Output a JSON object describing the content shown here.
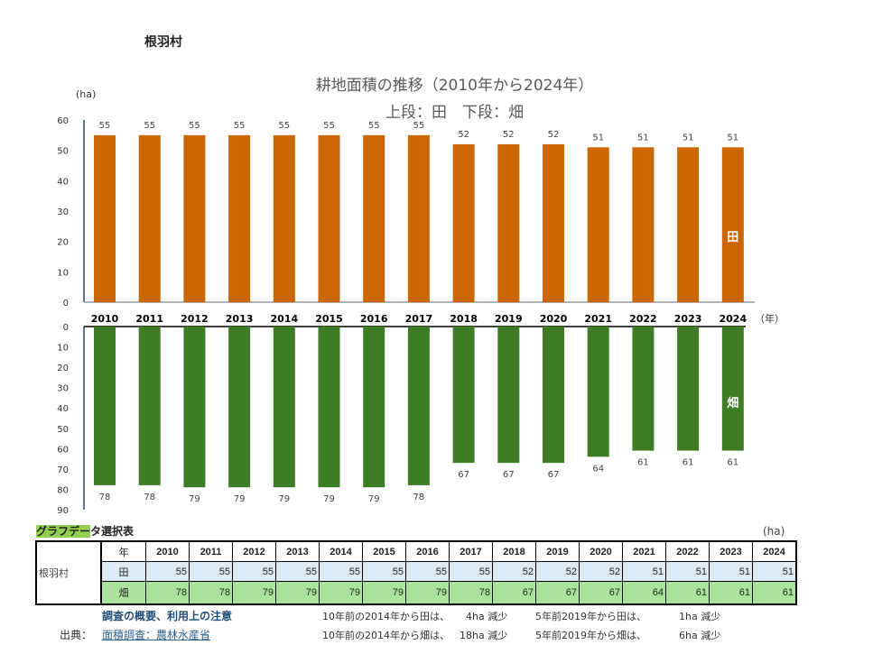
{
  "village": "根羽村",
  "chart_data": {
    "type": "bar",
    "title": "耕地面積の推移（2010年から2024年）",
    "subtitle": "上段：田　下段：畑",
    "ylabel": "(ha)",
    "xlabel": "（年）",
    "categories": [
      "2010",
      "2011",
      "2012",
      "2013",
      "2014",
      "2015",
      "2016",
      "2017",
      "2018",
      "2019",
      "2020",
      "2021",
      "2022",
      "2023",
      "2024"
    ],
    "series": [
      {
        "name": "田",
        "values": [
          55,
          55,
          55,
          55,
          55,
          55,
          55,
          55,
          52,
          52,
          52,
          51,
          51,
          51,
          51
        ],
        "color": "#cc6600",
        "ylim": [
          0,
          60
        ],
        "ticks": [
          0,
          10,
          20,
          30,
          40,
          50,
          60
        ]
      },
      {
        "name": "畑",
        "values": [
          78,
          78,
          79,
          79,
          79,
          79,
          79,
          78,
          67,
          67,
          67,
          64,
          61,
          61,
          61
        ],
        "color": "#3e7d26",
        "ylim": [
          0,
          90
        ],
        "ticks": [
          0,
          10,
          20,
          30,
          40,
          50,
          60,
          70,
          80,
          90
        ],
        "inverted": true
      }
    ]
  },
  "table": {
    "caption_highlight": "グラフデー",
    "caption_rest": "タ選択表",
    "unit": "(ha)",
    "year_header": "年",
    "row_label": "根羽村",
    "row_ta": "田",
    "row_ha": "畑"
  },
  "notes": {
    "link": "調査の概要、利用上の注意",
    "source_label": "出典：",
    "source_link": "面積調査：農林水産省",
    "n1": "10年前の2014年から田は、",
    "n1v": "4ha 減少",
    "n2": "5年前2019年から田は、",
    "n2v": "1ha 減少",
    "n3": "10年前の2014年から畑は、",
    "n3v": "18ha 減少",
    "n4": "5年前2019年から畑は、",
    "n4v": "6ha 減少"
  }
}
